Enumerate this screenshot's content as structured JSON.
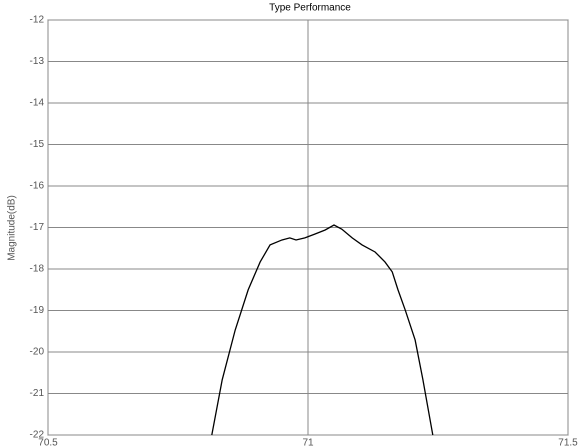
{
  "chart_data": {
    "type": "line",
    "title": "Type Performance",
    "y_label": "Magnitude(dB)",
    "x": [
      70.815,
      70.835,
      70.86,
      70.885,
      70.908,
      70.927,
      70.95,
      70.965,
      70.977,
      70.994,
      71.013,
      71.033,
      71.05,
      71.065,
      71.085,
      71.104,
      71.129,
      71.148,
      71.162,
      71.173,
      71.187,
      71.206,
      71.221,
      71.24
    ],
    "series": [
      {
        "color": "#000000",
        "values": [
          -22,
          -20.67,
          -19.47,
          -18.5,
          -17.83,
          -17.42,
          -17.3,
          -17.25,
          -17.3,
          -17.25,
          -17.16,
          -17.06,
          -16.94,
          -17.04,
          -17.25,
          -17.42,
          -17.59,
          -17.83,
          -18.07,
          -18.5,
          -18.99,
          -19.71,
          -20.67,
          -22
        ]
      }
    ],
    "xlim": [
      70.5,
      71.5
    ],
    "xticks": [
      70.5,
      71,
      71.5
    ],
    "ylim": [
      -22,
      -12
    ],
    "yticks": [
      -22,
      -21,
      -20,
      -19,
      -18,
      -17,
      -16,
      -15,
      -14,
      -13,
      -12
    ],
    "grid": true
  }
}
